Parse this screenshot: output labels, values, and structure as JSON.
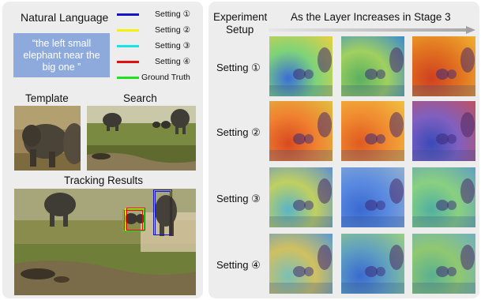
{
  "left": {
    "natural_language_title": "Natural Language",
    "query_text": "“the left small elephant near the big one ”",
    "legend": [
      {
        "label": "Setting ①",
        "color": "#1414c8"
      },
      {
        "label": "Setting ②",
        "color": "#f2f20a"
      },
      {
        "label": "Setting ③",
        "color": "#14e6e6"
      },
      {
        "label": "Setting ④",
        "color": "#e01010"
      },
      {
        "label": "Ground Truth",
        "color": "#20e020"
      }
    ],
    "template_title": "Template",
    "search_title": "Search",
    "tracking_title": "Tracking Results"
  },
  "right": {
    "setup_title_line1": "Experiment",
    "setup_title_line2": "Setup",
    "header": "As the Layer Increases in Stage 3",
    "rows": [
      {
        "label": "Setting ①"
      },
      {
        "label": "Setting ②"
      },
      {
        "label": "Setting ③"
      },
      {
        "label": "Setting ④"
      }
    ]
  }
}
